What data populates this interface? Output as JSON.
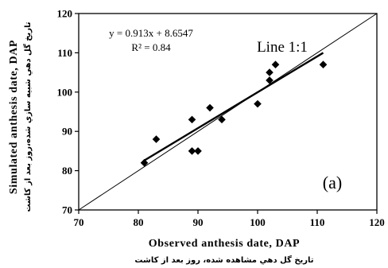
{
  "chart_data": {
    "type": "scatter",
    "panel_label": "(a)",
    "xlabel": "Observed anthesis date, DAP",
    "xlabel_fa": "تاريخ گل دهي مشاهده شده، روز بعد از كاشت",
    "ylabel": "Simulated anthesis date, DAP",
    "ylabel_fa": "تاريخ گل دهي شبيه سازي شده،روز بعد از كاشت",
    "xlim": [
      70,
      120
    ],
    "ylim": [
      70,
      120
    ],
    "xticks": [
      "70",
      "80",
      "90",
      "100",
      "110",
      "120"
    ],
    "yticks": [
      "70",
      "80",
      "90",
      "100",
      "110",
      "120"
    ],
    "grid": false,
    "points": [
      {
        "x": 81,
        "y": 82
      },
      {
        "x": 83,
        "y": 88
      },
      {
        "x": 89,
        "y": 93
      },
      {
        "x": 89,
        "y": 85
      },
      {
        "x": 90,
        "y": 85
      },
      {
        "x": 92,
        "y": 96
      },
      {
        "x": 94,
        "y": 93
      },
      {
        "x": 100,
        "y": 97
      },
      {
        "x": 102,
        "y": 103
      },
      {
        "x": 102,
        "y": 105
      },
      {
        "x": 103,
        "y": 107
      },
      {
        "x": 111,
        "y": 107
      }
    ],
    "regression": {
      "equation": "y = 0.913x + 8.6547",
      "r2": "R² = 0.84",
      "slope": 0.913,
      "intercept": 8.6547,
      "x_range": [
        81,
        111
      ]
    },
    "reference_line": {
      "label": "Line 1:1",
      "slope": 1,
      "intercept": 0
    }
  }
}
